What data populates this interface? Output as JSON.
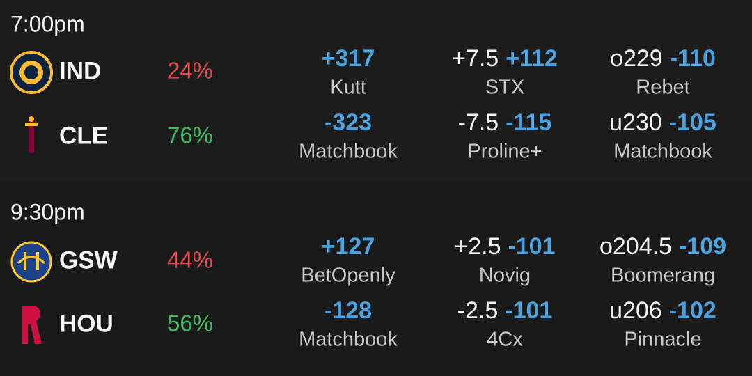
{
  "games": [
    {
      "time": "7:00pm",
      "teams": [
        {
          "abbr": "IND",
          "pct": "24%",
          "color": "#e4484d",
          "moneyline": {
            "odds": "+317",
            "book": "Kutt"
          },
          "spread": {
            "line": "+7.5",
            "odds": "+112",
            "book": "STX"
          },
          "total": {
            "line": "o229",
            "odds": "-110",
            "book": "Rebet"
          }
        },
        {
          "abbr": "CLE",
          "pct": "76%",
          "color": "#3dbb5e",
          "moneyline": {
            "odds": "-323",
            "book": "Matchbook"
          },
          "spread": {
            "line": "-7.5",
            "odds": "-115",
            "book": "Proline+"
          },
          "total": {
            "line": "u230",
            "odds": "-105",
            "book": "Matchbook"
          }
        }
      ]
    },
    {
      "time": "9:30pm",
      "teams": [
        {
          "abbr": "GSW",
          "pct": "44%",
          "color": "#e4484d",
          "moneyline": {
            "odds": "+127",
            "book": "BetOpenly"
          },
          "spread": {
            "line": "+2.5",
            "odds": "-101",
            "book": "Novig"
          },
          "total": {
            "line": "o204.5",
            "odds": "-109",
            "book": "Boomerang"
          }
        },
        {
          "abbr": "HOU",
          "pct": "56%",
          "color": "#3dbb5e",
          "moneyline": {
            "odds": "-128",
            "book": "Matchbook"
          },
          "spread": {
            "line": "-2.5",
            "odds": "-101",
            "book": "4Cx"
          },
          "total": {
            "line": "u206",
            "odds": "-102",
            "book": "Pinnacle"
          }
        }
      ]
    }
  ]
}
